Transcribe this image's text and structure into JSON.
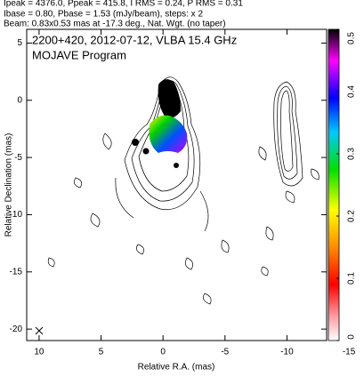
{
  "chart_data": {
    "type": "image",
    "header": [
      "Ipeak = 4376.0, Ppeak = 415.8, I RMS = 0.24, P RMS = 0.31",
      "Ibase = 0.80, Pbase = 1.53 (mJy/beam), steps: x 2",
      "Beam: 0.83x0.53 mas at -17.3 deg., Nat. Wgt. (no taper)"
    ],
    "title": "2200+420, 2012-07-12, VLBA 15.4 GHz",
    "subtitle": "MOJAVE Program",
    "xlabel": "Relative R.A. (mas)",
    "ylabel": "Relative Declination (mas)",
    "xlim": [
      11,
      -13.2
    ],
    "xticks": [
      10,
      5,
      0,
      -5,
      -10,
      -15
    ],
    "ylim": [
      -21,
      6.2
    ],
    "yticks": [
      5,
      0,
      -5,
      -10,
      -15,
      -20
    ],
    "colorbar": {
      "lim": [
        0,
        0.5
      ],
      "ticks": [
        0,
        0.1,
        0.2,
        0.3,
        0.4,
        0.5
      ]
    }
  }
}
